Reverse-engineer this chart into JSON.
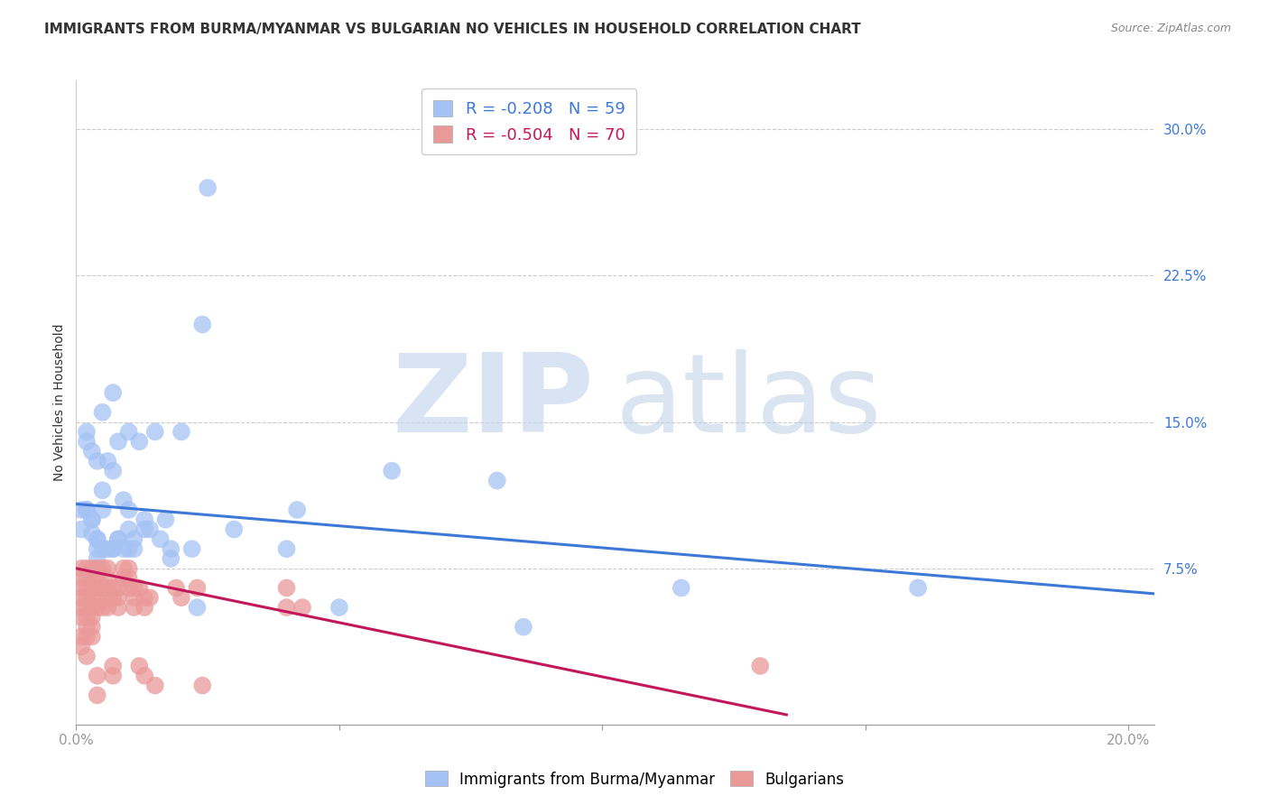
{
  "title": "IMMIGRANTS FROM BURMA/MYANMAR VS BULGARIAN NO VEHICLES IN HOUSEHOLD CORRELATION CHART",
  "source": "Source: ZipAtlas.com",
  "ylabel": "No Vehicles in Household",
  "ytick_labels": [
    "7.5%",
    "15.0%",
    "22.5%",
    "30.0%"
  ],
  "ytick_values": [
    0.075,
    0.15,
    0.225,
    0.3
  ],
  "xlim": [
    0.0,
    0.205
  ],
  "ylim": [
    -0.005,
    0.325
  ],
  "legend_blue_R": "R = -0.208",
  "legend_blue_N": "N = 59",
  "legend_pink_R": "R = -0.504",
  "legend_pink_N": "N = 70",
  "legend_label_blue": "Immigrants from Burma/Myanmar",
  "legend_label_pink": "Bulgarians",
  "watermark_ZIP": "ZIP",
  "watermark_atlas": "atlas",
  "blue_color": "#a4c2f4",
  "pink_color": "#ea9999",
  "blue_line_color": "#3c78d8",
  "pink_line_color": "#c2185b",
  "blue_scatter": [
    [
      0.001,
      0.095
    ],
    [
      0.001,
      0.105
    ],
    [
      0.002,
      0.145
    ],
    [
      0.002,
      0.14
    ],
    [
      0.002,
      0.105
    ],
    [
      0.002,
      0.105
    ],
    [
      0.003,
      0.135
    ],
    [
      0.003,
      0.1
    ],
    [
      0.003,
      0.093
    ],
    [
      0.003,
      0.1
    ],
    [
      0.004,
      0.09
    ],
    [
      0.004,
      0.09
    ],
    [
      0.004,
      0.085
    ],
    [
      0.004,
      0.13
    ],
    [
      0.004,
      0.08
    ],
    [
      0.005,
      0.115
    ],
    [
      0.005,
      0.155
    ],
    [
      0.005,
      0.105
    ],
    [
      0.005,
      0.085
    ],
    [
      0.006,
      0.085
    ],
    [
      0.006,
      0.13
    ],
    [
      0.007,
      0.085
    ],
    [
      0.007,
      0.085
    ],
    [
      0.007,
      0.125
    ],
    [
      0.007,
      0.165
    ],
    [
      0.008,
      0.14
    ],
    [
      0.008,
      0.09
    ],
    [
      0.008,
      0.09
    ],
    [
      0.009,
      0.11
    ],
    [
      0.009,
      0.085
    ],
    [
      0.01,
      0.085
    ],
    [
      0.01,
      0.105
    ],
    [
      0.01,
      0.145
    ],
    [
      0.01,
      0.095
    ],
    [
      0.011,
      0.09
    ],
    [
      0.011,
      0.085
    ],
    [
      0.012,
      0.14
    ],
    [
      0.013,
      0.095
    ],
    [
      0.013,
      0.1
    ],
    [
      0.014,
      0.095
    ],
    [
      0.015,
      0.145
    ],
    [
      0.016,
      0.09
    ],
    [
      0.017,
      0.1
    ],
    [
      0.018,
      0.085
    ],
    [
      0.018,
      0.08
    ],
    [
      0.02,
      0.145
    ],
    [
      0.022,
      0.085
    ],
    [
      0.023,
      0.055
    ],
    [
      0.024,
      0.2
    ],
    [
      0.025,
      0.27
    ],
    [
      0.03,
      0.095
    ],
    [
      0.04,
      0.085
    ],
    [
      0.042,
      0.105
    ],
    [
      0.05,
      0.055
    ],
    [
      0.06,
      0.125
    ],
    [
      0.08,
      0.12
    ],
    [
      0.085,
      0.045
    ],
    [
      0.115,
      0.065
    ],
    [
      0.16,
      0.065
    ]
  ],
  "pink_scatter": [
    [
      0.001,
      0.075
    ],
    [
      0.001,
      0.07
    ],
    [
      0.001,
      0.065
    ],
    [
      0.001,
      0.06
    ],
    [
      0.001,
      0.055
    ],
    [
      0.001,
      0.05
    ],
    [
      0.001,
      0.04
    ],
    [
      0.001,
      0.035
    ],
    [
      0.002,
      0.075
    ],
    [
      0.002,
      0.07
    ],
    [
      0.002,
      0.065
    ],
    [
      0.002,
      0.06
    ],
    [
      0.002,
      0.055
    ],
    [
      0.002,
      0.05
    ],
    [
      0.002,
      0.045
    ],
    [
      0.002,
      0.04
    ],
    [
      0.002,
      0.03
    ],
    [
      0.003,
      0.075
    ],
    [
      0.003,
      0.07
    ],
    [
      0.003,
      0.065
    ],
    [
      0.003,
      0.06
    ],
    [
      0.003,
      0.055
    ],
    [
      0.003,
      0.05
    ],
    [
      0.003,
      0.045
    ],
    [
      0.003,
      0.04
    ],
    [
      0.004,
      0.075
    ],
    [
      0.004,
      0.07
    ],
    [
      0.004,
      0.065
    ],
    [
      0.004,
      0.06
    ],
    [
      0.004,
      0.055
    ],
    [
      0.004,
      0.02
    ],
    [
      0.004,
      0.01
    ],
    [
      0.005,
      0.075
    ],
    [
      0.005,
      0.065
    ],
    [
      0.005,
      0.055
    ],
    [
      0.006,
      0.075
    ],
    [
      0.006,
      0.07
    ],
    [
      0.006,
      0.065
    ],
    [
      0.006,
      0.06
    ],
    [
      0.006,
      0.055
    ],
    [
      0.007,
      0.065
    ],
    [
      0.007,
      0.06
    ],
    [
      0.007,
      0.025
    ],
    [
      0.007,
      0.02
    ],
    [
      0.008,
      0.065
    ],
    [
      0.008,
      0.06
    ],
    [
      0.008,
      0.055
    ],
    [
      0.009,
      0.075
    ],
    [
      0.009,
      0.07
    ],
    [
      0.01,
      0.075
    ],
    [
      0.01,
      0.07
    ],
    [
      0.01,
      0.065
    ],
    [
      0.011,
      0.065
    ],
    [
      0.011,
      0.06
    ],
    [
      0.011,
      0.055
    ],
    [
      0.012,
      0.065
    ],
    [
      0.012,
      0.025
    ],
    [
      0.013,
      0.06
    ],
    [
      0.013,
      0.055
    ],
    [
      0.013,
      0.02
    ],
    [
      0.014,
      0.06
    ],
    [
      0.015,
      0.015
    ],
    [
      0.019,
      0.065
    ],
    [
      0.02,
      0.06
    ],
    [
      0.023,
      0.065
    ],
    [
      0.024,
      0.015
    ],
    [
      0.04,
      0.065
    ],
    [
      0.04,
      0.055
    ],
    [
      0.043,
      0.055
    ],
    [
      0.13,
      0.025
    ]
  ],
  "blue_line_x": [
    0.0,
    0.205
  ],
  "blue_line_y": [
    0.108,
    0.062
  ],
  "pink_line_x": [
    0.0,
    0.135
  ],
  "pink_line_y": [
    0.075,
    0.0
  ],
  "title_fontsize": 11,
  "axis_label_fontsize": 10,
  "tick_fontsize": 11,
  "background_color": "#ffffff",
  "grid_color": "#cccccc"
}
